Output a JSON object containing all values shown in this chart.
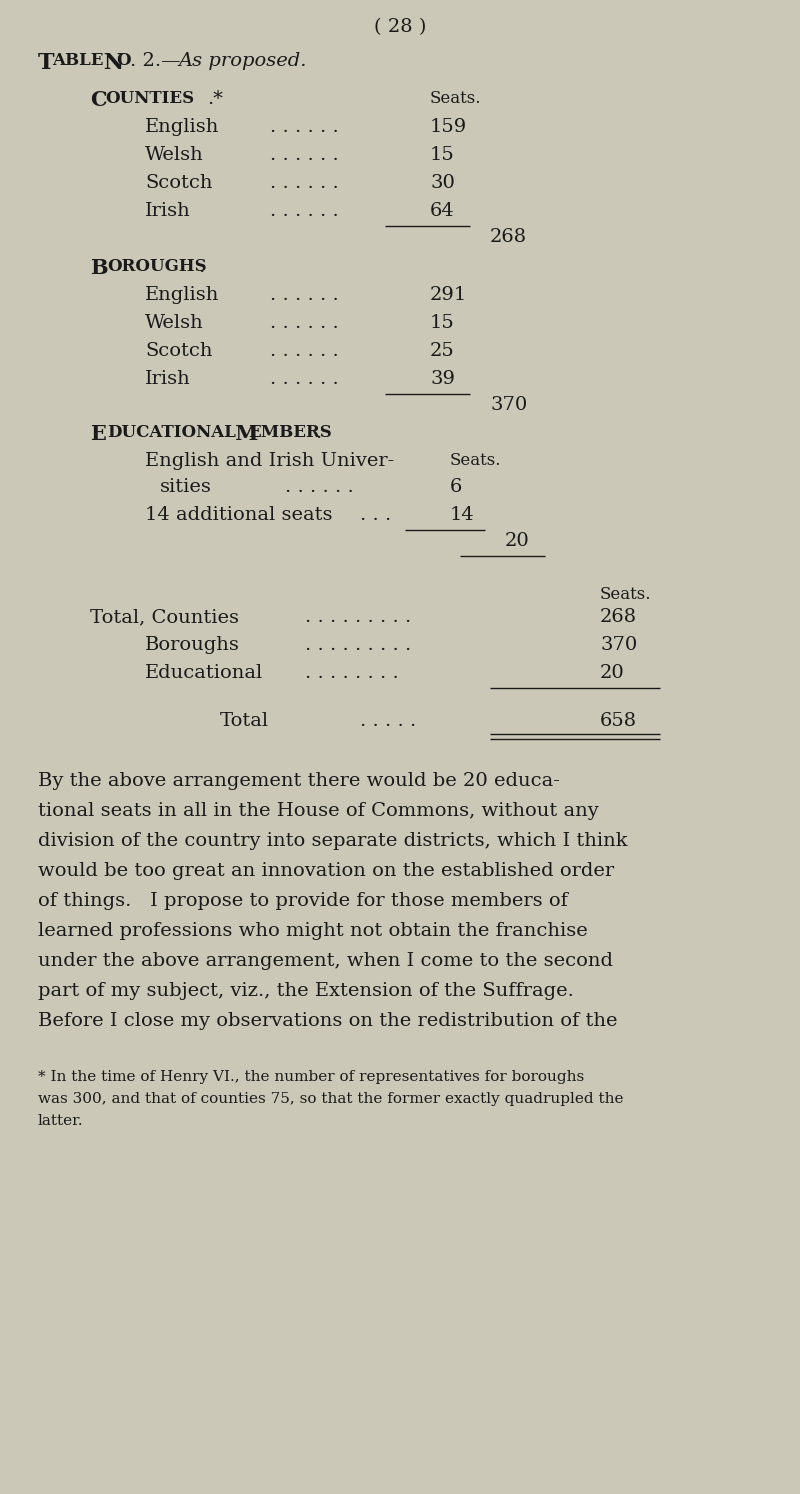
{
  "bg_color": "#ccc8b8",
  "text_color": "#1a1a1a",
  "page_number": "( 28 )",
  "paragraph": "By the above arrangement there would be 20 educa-\ntional seats in all in the House of Commons, without any\ndivision of the country into separate districts, which I think\nwould be too great an innovation on the established order\nof things.   I propose to provide for those members of\nlearned professions who might not obtain the franchise\nunder the above arrangement, when I come to the second\npart of my subject, viz., the Extension of the Suffrage.\nBefore I close my observations on the redistribution of the",
  "footnote": "* In the time of Henry VI., the number of representatives for boroughs\nwas 300, and that of counties 75, so that the former exactly quadrupled the\nlatter."
}
